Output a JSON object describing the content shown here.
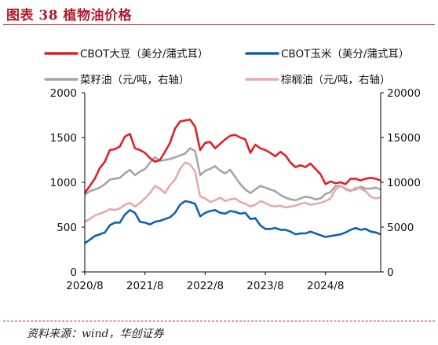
{
  "header": {
    "title": "图表 38   植物油价格"
  },
  "footer": {
    "source": "资料来源：wind，华创证券"
  },
  "chart_data": {
    "type": "line",
    "x_ticks": [
      "2020/8",
      "2021/8",
      "2022/8",
      "2023/8",
      "2024/8"
    ],
    "x_range": [
      "2020/8",
      "2025/7"
    ],
    "y_left": {
      "range": [
        0,
        2000
      ],
      "ticks": [
        "0",
        "500",
        "1000",
        "1500",
        "2000"
      ]
    },
    "y_right": {
      "range": [
        0,
        20000
      ],
      "ticks": [
        "0",
        "5000",
        "10000",
        "15000",
        "20000"
      ]
    },
    "grid": false,
    "legend_position": "top",
    "series": [
      {
        "name": "CBOT大豆（美分/蒲式耳）",
        "color": "#e31e25",
        "axis": "left",
        "points": [
          [
            "2020/8",
            880
          ],
          [
            "2020/9",
            960
          ],
          [
            "2020/10",
            1040
          ],
          [
            "2020/11",
            1160
          ],
          [
            "2020/12",
            1230
          ],
          [
            "2021/1",
            1360
          ],
          [
            "2021/2",
            1370
          ],
          [
            "2021/3",
            1400
          ],
          [
            "2021/4",
            1510
          ],
          [
            "2021/5",
            1540
          ],
          [
            "2021/6",
            1380
          ],
          [
            "2021/7",
            1360
          ],
          [
            "2021/8",
            1330
          ],
          [
            "2021/9",
            1270
          ],
          [
            "2021/10",
            1230
          ],
          [
            "2021/11",
            1250
          ],
          [
            "2021/12",
            1340
          ],
          [
            "2022/1",
            1440
          ],
          [
            "2022/2",
            1600
          ],
          [
            "2022/3",
            1680
          ],
          [
            "2022/4",
            1690
          ],
          [
            "2022/5",
            1700
          ],
          [
            "2022/6",
            1620
          ],
          [
            "2022/7",
            1360
          ],
          [
            "2022/8",
            1440
          ],
          [
            "2022/9",
            1450
          ],
          [
            "2022/10",
            1380
          ],
          [
            "2022/11",
            1430
          ],
          [
            "2022/12",
            1480
          ],
          [
            "2023/1",
            1520
          ],
          [
            "2023/2",
            1530
          ],
          [
            "2023/3",
            1500
          ],
          [
            "2023/4",
            1480
          ],
          [
            "2023/5",
            1330
          ],
          [
            "2023/6",
            1420
          ],
          [
            "2023/7",
            1380
          ],
          [
            "2023/8",
            1360
          ],
          [
            "2023/9",
            1330
          ],
          [
            "2023/10",
            1290
          ],
          [
            "2023/11",
            1340
          ],
          [
            "2023/12",
            1300
          ],
          [
            "2024/1",
            1220
          ],
          [
            "2024/2",
            1170
          ],
          [
            "2024/3",
            1190
          ],
          [
            "2024/4",
            1170
          ],
          [
            "2024/5",
            1210
          ],
          [
            "2024/6",
            1150
          ],
          [
            "2024/7",
            1090
          ],
          [
            "2024/8",
            980
          ],
          [
            "2024/9",
            1010
          ],
          [
            "2024/10",
            990
          ],
          [
            "2024/11",
            1000
          ],
          [
            "2024/12",
            980
          ],
          [
            "2025/1",
            1040
          ],
          [
            "2025/2",
            1040
          ],
          [
            "2025/3",
            1020
          ],
          [
            "2025/4",
            1040
          ],
          [
            "2025/5",
            1050
          ],
          [
            "2025/6",
            1040
          ],
          [
            "2025/7",
            1020
          ]
        ]
      },
      {
        "name": "CBOT玉米（美分/蒲式耳）",
        "color": "#1060b8",
        "axis": "left",
        "points": [
          [
            "2020/8",
            320
          ],
          [
            "2020/9",
            360
          ],
          [
            "2020/10",
            400
          ],
          [
            "2020/11",
            420
          ],
          [
            "2020/12",
            440
          ],
          [
            "2021/1",
            520
          ],
          [
            "2021/2",
            550
          ],
          [
            "2021/3",
            550
          ],
          [
            "2021/4",
            640
          ],
          [
            "2021/5",
            690
          ],
          [
            "2021/6",
            660
          ],
          [
            "2021/7",
            560
          ],
          [
            "2021/8",
            550
          ],
          [
            "2021/9",
            530
          ],
          [
            "2021/10",
            560
          ],
          [
            "2021/11",
            570
          ],
          [
            "2021/12",
            590
          ],
          [
            "2022/1",
            610
          ],
          [
            "2022/2",
            660
          ],
          [
            "2022/3",
            750
          ],
          [
            "2022/4",
            790
          ],
          [
            "2022/5",
            780
          ],
          [
            "2022/6",
            760
          ],
          [
            "2022/7",
            620
          ],
          [
            "2022/8",
            660
          ],
          [
            "2022/9",
            680
          ],
          [
            "2022/10",
            690
          ],
          [
            "2022/11",
            660
          ],
          [
            "2022/12",
            650
          ],
          [
            "2023/1",
            680
          ],
          [
            "2023/2",
            670
          ],
          [
            "2023/3",
            650
          ],
          [
            "2023/4",
            660
          ],
          [
            "2023/5",
            590
          ],
          [
            "2023/6",
            600
          ],
          [
            "2023/7",
            520
          ],
          [
            "2023/8",
            480
          ],
          [
            "2023/9",
            480
          ],
          [
            "2023/10",
            490
          ],
          [
            "2023/11",
            470
          ],
          [
            "2023/12",
            470
          ],
          [
            "2024/1",
            450
          ],
          [
            "2024/2",
            420
          ],
          [
            "2024/3",
            430
          ],
          [
            "2024/4",
            430
          ],
          [
            "2024/5",
            450
          ],
          [
            "2024/6",
            430
          ],
          [
            "2024/7",
            410
          ],
          [
            "2024/8",
            390
          ],
          [
            "2024/9",
            400
          ],
          [
            "2024/10",
            410
          ],
          [
            "2024/11",
            420
          ],
          [
            "2024/12",
            440
          ],
          [
            "2025/1",
            470
          ],
          [
            "2025/2",
            490
          ],
          [
            "2025/3",
            470
          ],
          [
            "2025/4",
            480
          ],
          [
            "2025/5",
            450
          ],
          [
            "2025/6",
            440
          ],
          [
            "2025/7",
            420
          ]
        ]
      },
      {
        "name": "菜籽油（元/吨，右轴）",
        "color": "#a6a6a6",
        "axis": "right",
        "points": [
          [
            "2020/8",
            8600
          ],
          [
            "2020/9",
            9000
          ],
          [
            "2020/10",
            9200
          ],
          [
            "2020/11",
            9400
          ],
          [
            "2020/12",
            9800
          ],
          [
            "2021/1",
            10300
          ],
          [
            "2021/2",
            10400
          ],
          [
            "2021/3",
            10500
          ],
          [
            "2021/4",
            11000
          ],
          [
            "2021/5",
            11400
          ],
          [
            "2021/6",
            10800
          ],
          [
            "2021/7",
            11200
          ],
          [
            "2021/8",
            11500
          ],
          [
            "2021/9",
            12200
          ],
          [
            "2021/10",
            12800
          ],
          [
            "2021/11",
            12400
          ],
          [
            "2021/12",
            12500
          ],
          [
            "2022/1",
            12600
          ],
          [
            "2022/2",
            12800
          ],
          [
            "2022/3",
            13000
          ],
          [
            "2022/4",
            13200
          ],
          [
            "2022/5",
            13800
          ],
          [
            "2022/6",
            13500
          ],
          [
            "2022/7",
            10800
          ],
          [
            "2022/8",
            11300
          ],
          [
            "2022/9",
            11500
          ],
          [
            "2022/10",
            11800
          ],
          [
            "2022/11",
            11300
          ],
          [
            "2022/12",
            11000
          ],
          [
            "2023/1",
            11400
          ],
          [
            "2023/2",
            10600
          ],
          [
            "2023/3",
            9800
          ],
          [
            "2023/4",
            9200
          ],
          [
            "2023/5",
            8800
          ],
          [
            "2023/6",
            9200
          ],
          [
            "2023/7",
            9600
          ],
          [
            "2023/8",
            9400
          ],
          [
            "2023/9",
            9200
          ],
          [
            "2023/10",
            9000
          ],
          [
            "2023/11",
            8600
          ],
          [
            "2023/12",
            8300
          ],
          [
            "2024/1",
            8100
          ],
          [
            "2024/2",
            8000
          ],
          [
            "2024/3",
            8200
          ],
          [
            "2024/4",
            8400
          ],
          [
            "2024/5",
            8300
          ],
          [
            "2024/6",
            8100
          ],
          [
            "2024/7",
            8200
          ],
          [
            "2024/8",
            8700
          ],
          [
            "2024/9",
            8900
          ],
          [
            "2024/10",
            9600
          ],
          [
            "2024/11",
            9600
          ],
          [
            "2024/12",
            9300
          ],
          [
            "2025/1",
            9100
          ],
          [
            "2025/2",
            9200
          ],
          [
            "2025/3",
            9500
          ],
          [
            "2025/4",
            9300
          ],
          [
            "2025/5",
            9300
          ],
          [
            "2025/6",
            9400
          ],
          [
            "2025/7",
            9200
          ]
        ]
      },
      {
        "name": "棕榈油（元/吨，右轴）",
        "color": "#e8a9a9",
        "axis": "right",
        "points": [
          [
            "2020/8",
            5600
          ],
          [
            "2020/9",
            5900
          ],
          [
            "2020/10",
            6300
          ],
          [
            "2020/11",
            6500
          ],
          [
            "2020/12",
            6700
          ],
          [
            "2021/1",
            7000
          ],
          [
            "2021/2",
            6900
          ],
          [
            "2021/3",
            7100
          ],
          [
            "2021/4",
            7500
          ],
          [
            "2021/5",
            7700
          ],
          [
            "2021/6",
            7300
          ],
          [
            "2021/7",
            7700
          ],
          [
            "2021/8",
            8200
          ],
          [
            "2021/9",
            8800
          ],
          [
            "2021/10",
            9600
          ],
          [
            "2021/11",
            9300
          ],
          [
            "2021/12",
            8800
          ],
          [
            "2022/1",
            9700
          ],
          [
            "2022/2",
            10300
          ],
          [
            "2022/3",
            11500
          ],
          [
            "2022/4",
            12200
          ],
          [
            "2022/5",
            12000
          ],
          [
            "2022/6",
            11200
          ],
          [
            "2022/7",
            8400
          ],
          [
            "2022/8",
            8200
          ],
          [
            "2022/9",
            7800
          ],
          [
            "2022/10",
            8000
          ],
          [
            "2022/11",
            8300
          ],
          [
            "2022/12",
            7900
          ],
          [
            "2023/1",
            8100
          ],
          [
            "2023/2",
            8200
          ],
          [
            "2023/3",
            7800
          ],
          [
            "2023/4",
            7600
          ],
          [
            "2023/5",
            7300
          ],
          [
            "2023/6",
            7500
          ],
          [
            "2023/7",
            7900
          ],
          [
            "2023/8",
            7700
          ],
          [
            "2023/9",
            7400
          ],
          [
            "2023/10",
            7300
          ],
          [
            "2023/11",
            7400
          ],
          [
            "2023/12",
            7200
          ],
          [
            "2024/1",
            7300
          ],
          [
            "2024/2",
            7400
          ],
          [
            "2024/3",
            7600
          ],
          [
            "2024/4",
            7700
          ],
          [
            "2024/5",
            7500
          ],
          [
            "2024/6",
            7600
          ],
          [
            "2024/7",
            7700
          ],
          [
            "2024/8",
            7900
          ],
          [
            "2024/9",
            8200
          ],
          [
            "2024/10",
            9200
          ],
          [
            "2024/11",
            9600
          ],
          [
            "2024/12",
            9200
          ],
          [
            "2025/1",
            9000
          ],
          [
            "2025/2",
            9400
          ],
          [
            "2025/3",
            9300
          ],
          [
            "2025/4",
            9000
          ],
          [
            "2025/5",
            8400
          ],
          [
            "2025/6",
            8200
          ],
          [
            "2025/7",
            8300
          ]
        ]
      }
    ]
  }
}
